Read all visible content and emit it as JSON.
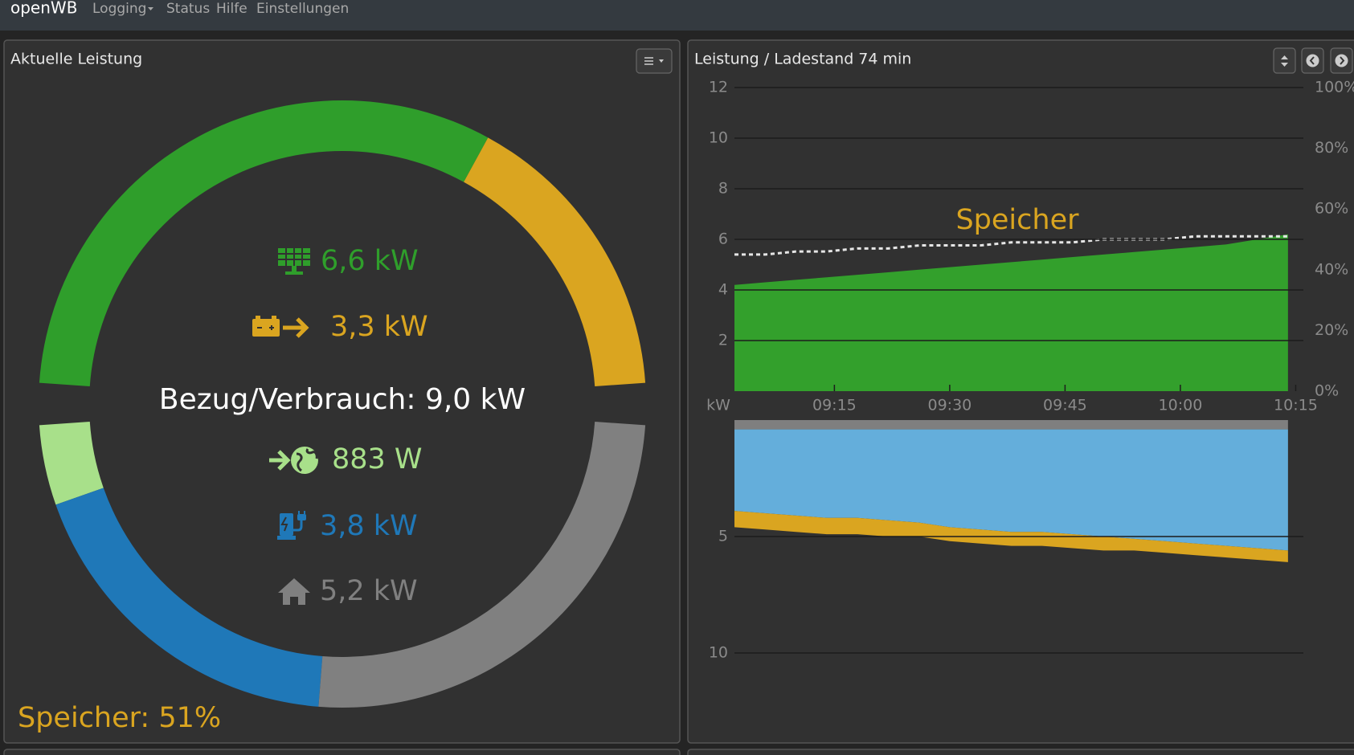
{
  "navbar": {
    "brand": "openWB",
    "items": [
      "Logging",
      "Status",
      "Hilfe",
      "Einstellungen"
    ]
  },
  "chart_data": [
    {
      "type": "donut",
      "title": "Aktuelle Leistung",
      "center_label": "Bezug/Verbrauch: 9,0 kW",
      "footer": "Speicher: 51%",
      "series": [
        {
          "values": [
            6600,
            3300
          ],
          "value_labels": [
            "6,6 kW",
            "3,3 kW"
          ],
          "colors": [
            "#2f9e2b",
            "#daa520"
          ]
        },
        {
          "values": [
            883,
            3800,
            5200
          ],
          "value_labels": [
            "883 W",
            "3,8 kW",
            "5,2 kW"
          ],
          "colors": [
            "#a8e08a",
            "#1f78b8",
            "#808080"
          ]
        }
      ]
    },
    {
      "type": "area",
      "title": "Leistung / Ladestand 74 min",
      "annotation": "Speicher",
      "x": [
        "09:02",
        "09:06",
        "09:10",
        "09:14",
        "09:18",
        "09:22",
        "09:26",
        "09:30",
        "09:34",
        "09:38",
        "09:42",
        "09:46",
        "09:50",
        "09:54",
        "09:58",
        "10:02",
        "10:06",
        "10:10",
        "10:14"
      ],
      "xlim": [
        "09:02",
        "10:16"
      ],
      "xticks": [
        "09:15",
        "09:30",
        "09:45",
        "10:00",
        "10:15"
      ],
      "ylim": [
        0,
        12
      ],
      "yticks": [
        2,
        4,
        6,
        8,
        10,
        12
      ],
      "y_label": "kW",
      "y2lim": [
        0,
        100
      ],
      "y2ticks": [
        {
          "value": 0,
          "label": "0%"
        },
        {
          "value": 20,
          "label": "20%"
        },
        {
          "value": 40,
          "label": "40%"
        },
        {
          "value": 60,
          "label": "60%"
        },
        {
          "value": 80,
          "label": "80%"
        },
        {
          "value": 100,
          "label": "100%"
        }
      ],
      "grid": true,
      "series": [
        {
          "color": "#33a02c",
          "values": [
            4.2,
            4.3,
            4.4,
            4.5,
            4.6,
            4.7,
            4.8,
            4.9,
            5.0,
            5.1,
            5.2,
            5.3,
            5.4,
            5.5,
            5.6,
            5.7,
            5.8,
            6.0,
            6.2
          ]
        },
        {
          "color": "#e6e6e6",
          "axis": "y2",
          "dashed": true,
          "values": [
            45,
            45,
            46,
            46,
            47,
            47,
            48,
            48,
            48,
            49,
            49,
            49,
            50,
            50,
            50,
            51,
            51,
            51,
            51
          ]
        }
      ]
    },
    {
      "type": "area",
      "stacked": true,
      "y_inverted": true,
      "x": [
        "09:02",
        "09:06",
        "09:10",
        "09:14",
        "09:18",
        "09:22",
        "09:26",
        "09:30",
        "09:34",
        "09:38",
        "09:42",
        "09:46",
        "09:50",
        "09:54",
        "09:58",
        "10:02",
        "10:06",
        "10:10",
        "10:14"
      ],
      "xlim": [
        "09:02",
        "10:16"
      ],
      "ylim": [
        0,
        12
      ],
      "yticks": [
        5,
        10
      ],
      "grid": true,
      "series": [
        {
          "color": "#7f7f7f",
          "values": [
            0.4,
            0.4,
            0.4,
            0.4,
            0.4,
            0.4,
            0.4,
            0.4,
            0.4,
            0.4,
            0.4,
            0.4,
            0.4,
            0.4,
            0.4,
            0.4,
            0.4,
            0.4,
            0.4
          ]
        },
        {
          "color": "#64aedb",
          "values": [
            3.5,
            3.6,
            3.7,
            3.8,
            3.8,
            3.9,
            4.0,
            4.2,
            4.3,
            4.4,
            4.4,
            4.5,
            4.6,
            4.7,
            4.8,
            4.9,
            5.0,
            5.1,
            5.2
          ]
        },
        {
          "color": "#daa520",
          "values": [
            0.7,
            0.7,
            0.7,
            0.7,
            0.7,
            0.7,
            0.6,
            0.6,
            0.6,
            0.6,
            0.6,
            0.6,
            0.6,
            0.5,
            0.5,
            0.5,
            0.5,
            0.5,
            0.5
          ]
        }
      ]
    }
  ]
}
